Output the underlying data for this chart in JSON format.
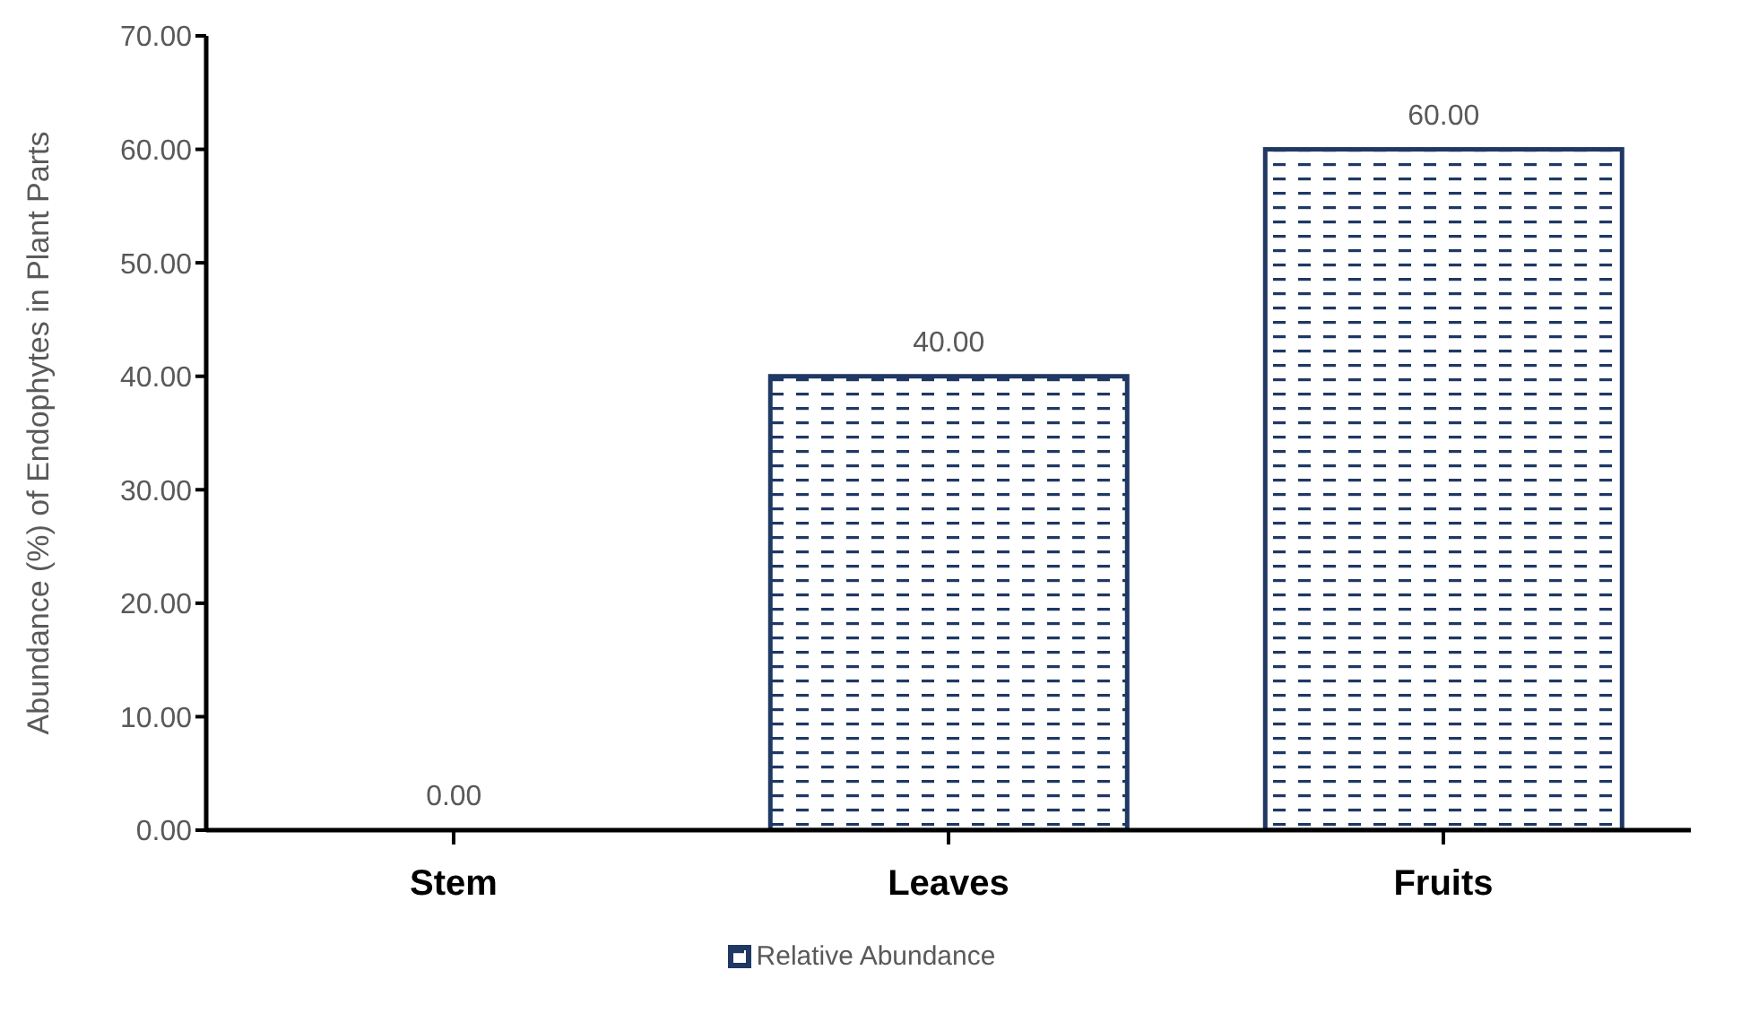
{
  "chart_data": {
    "type": "bar",
    "ylabel": "Abundance (%) of Endophytes in Plant Parts",
    "categories": [
      "Stem",
      "Leaves",
      "Fruits"
    ],
    "series": [
      {
        "name": "Relative Abundance",
        "color": "#1f3864",
        "values": [
          0,
          40,
          60
        ],
        "value_labels": [
          "0.00",
          "40.00",
          "60.00"
        ]
      }
    ],
    "ylim": [
      0,
      70
    ],
    "yticks": [
      {
        "value": 0,
        "label": "0.00"
      },
      {
        "value": 10,
        "label": "10.00"
      },
      {
        "value": 20,
        "label": "20.00"
      },
      {
        "value": 30,
        "label": "30.00"
      },
      {
        "value": 40,
        "label": "40.00"
      },
      {
        "value": 50,
        "label": "50.00"
      },
      {
        "value": 60,
        "label": "60.00"
      },
      {
        "value": 70,
        "label": "70.00"
      }
    ],
    "grid": false,
    "legend": "bottom"
  }
}
